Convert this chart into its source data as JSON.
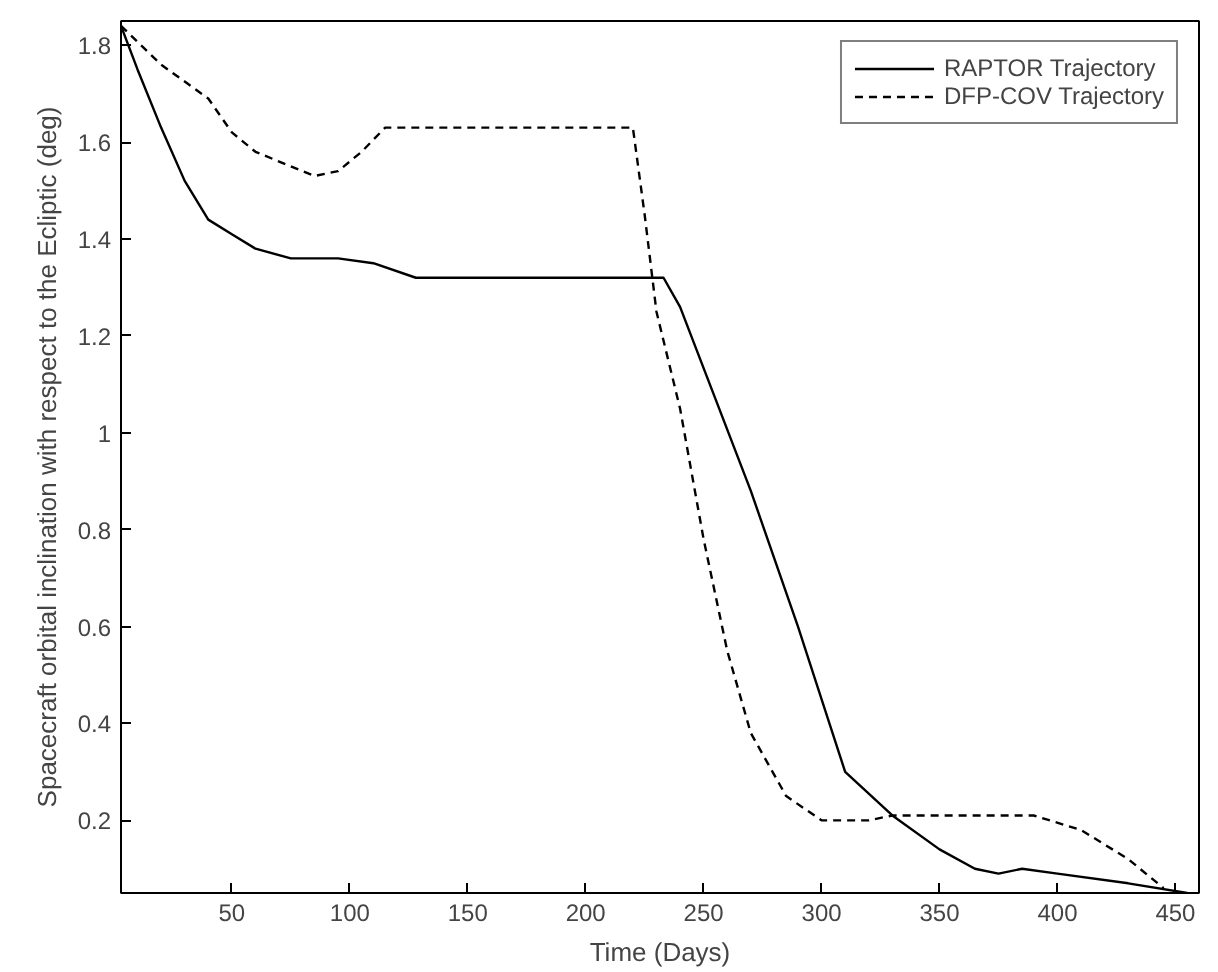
{
  "chart_data": {
    "type": "line",
    "xlabel": "Time (Days)",
    "ylabel": "Spacecraft orbital inclination with respect to the Ecliptic (deg)",
    "xlim": [
      3,
      460
    ],
    "ylim": [
      0.05,
      1.85
    ],
    "xticks": [
      50,
      100,
      150,
      200,
      250,
      300,
      350,
      400,
      450
    ],
    "yticks": [
      0.2,
      0.4,
      0.6,
      0.8,
      1,
      1.2,
      1.4,
      1.6,
      1.8
    ],
    "grid": false,
    "legend": "top right",
    "marker": "none",
    "series": [
      {
        "name": "RAPTOR Trajectory",
        "color": "#000000",
        "line_style": "solid",
        "x": [
          3,
          10,
          20,
          30,
          40,
          50,
          60,
          75,
          95,
          110,
          128,
          233,
          240,
          255,
          270,
          290,
          310,
          330,
          350,
          365,
          375,
          385,
          400,
          430,
          455
        ],
        "values": [
          1.84,
          1.75,
          1.63,
          1.52,
          1.44,
          1.41,
          1.38,
          1.36,
          1.36,
          1.35,
          1.32,
          1.32,
          1.26,
          1.07,
          0.88,
          0.6,
          0.3,
          0.21,
          0.14,
          0.1,
          0.09,
          0.1,
          0.09,
          0.07,
          0.05
        ]
      },
      {
        "name": "DFP-COV Trajectory",
        "color": "#000000",
        "line_style": "dashed",
        "x": [
          3,
          20,
          40,
          50,
          60,
          75,
          85,
          95,
          105,
          115,
          220,
          225,
          230,
          240,
          250,
          260,
          270,
          285,
          300,
          320,
          330,
          390,
          410,
          430,
          445
        ],
        "values": [
          1.84,
          1.76,
          1.69,
          1.62,
          1.58,
          1.55,
          1.53,
          1.54,
          1.58,
          1.63,
          1.63,
          1.45,
          1.25,
          1.05,
          0.78,
          0.55,
          0.38,
          0.25,
          0.2,
          0.2,
          0.21,
          0.21,
          0.18,
          0.12,
          0.06
        ]
      }
    ]
  }
}
